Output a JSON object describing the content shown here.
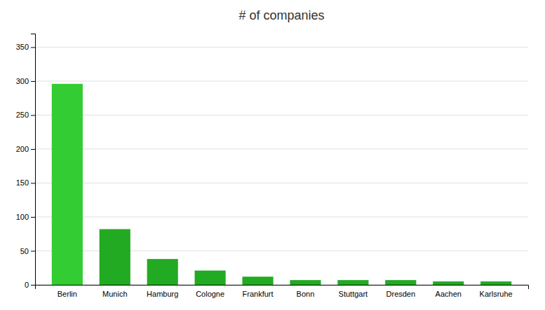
{
  "chart_data": {
    "type": "bar",
    "title": "# of companies",
    "categories": [
      "Berlin",
      "Munich",
      "Hamburg",
      "Cologne",
      "Frankfurt",
      "Bonn",
      "Stuttgart",
      "Dresden",
      "Aachen",
      "Karlsruhe"
    ],
    "values": [
      296,
      82,
      38,
      21,
      12,
      7,
      7,
      7,
      5,
      5
    ],
    "colors": [
      "#33cc33",
      "#22aa22",
      "#22aa22",
      "#22aa22",
      "#22aa22",
      "#22aa22",
      "#22aa22",
      "#22aa22",
      "#22aa22",
      "#22aa22"
    ],
    "ylim": [
      0,
      370
    ],
    "yticks": [
      0,
      50,
      100,
      150,
      200,
      250,
      300,
      350
    ],
    "grid": true
  }
}
